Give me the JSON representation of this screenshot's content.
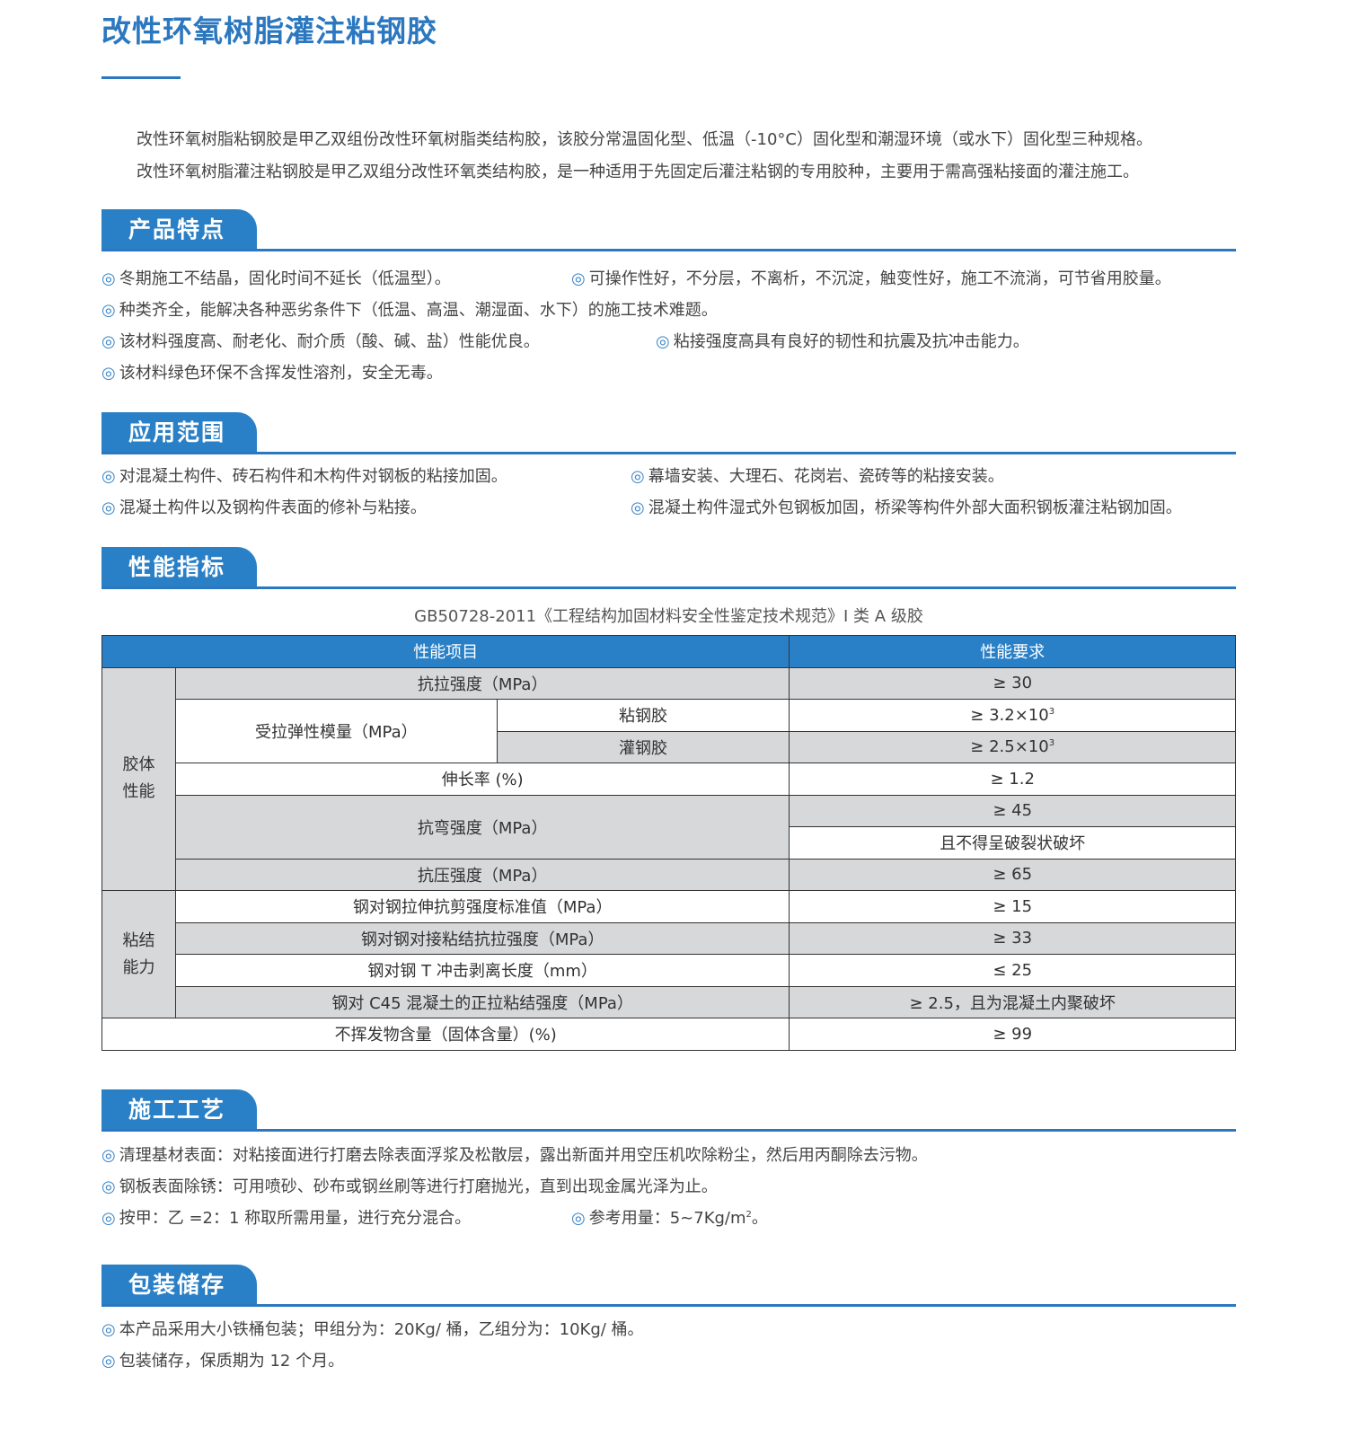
{
  "title": "改性环氧树脂灌注粘钢胶",
  "intro": [
    "改性环氧树脂粘钢胶是甲乙双组份改性环氧树脂类结构胶，该胶分常温固化型、低温（-10°C）固化型和潮湿环境（或水下）固化型三种规格。",
    "改性环氧树脂灌注粘钢胶是甲乙双组分改性环氧类结构胶，是一种适用于先固定后灌注粘钢的专用胶种，主要用于需高强粘接面的灌注施工。"
  ],
  "bullet": "◎",
  "colors": {
    "accent": "#2b78c0",
    "header_bg": "#2a80c6",
    "gray_cell": "#d7d8da"
  },
  "features": {
    "heading": "产品特点",
    "items": [
      "冬期施工不结晶，固化时间不延长（低温型）。",
      "可操作性好，不分层，不离析，不沉淀，触变性好，施工不流淌，可节省用胶量。",
      "种类齐全，能解决各种恶劣条件下（低温、高温、潮湿面、水下）的施工技术难题。",
      "该材料强度高、耐老化、耐介质（酸、碱、盐）性能优良。",
      "粘接强度高具有良好的韧性和抗震及抗冲击能力。",
      "该材料绿色环保不含挥发性溶剂，安全无毒。"
    ]
  },
  "applications": {
    "heading": "应用范围",
    "items": [
      "对混凝土构件、砖石构件和木构件对钢板的粘接加固。",
      "幕墙安装、大理石、花岗岩、瓷砖等的粘接安装。",
      "混凝土构件以及钢构件表面的修补与粘接。",
      "混凝土构件湿式外包钢板加固，桥梁等构件外部大面积钢板灌注粘钢加固。"
    ]
  },
  "performance": {
    "heading": "性能指标",
    "caption": "GB50728-2011《工程结构加固材料安全性鉴定技术规范》I 类 A 级胶",
    "col_item": "性能项目",
    "col_req": "性能要求",
    "group1": "胶体性能",
    "group2": "粘结能力",
    "rows": [
      {
        "item": "抗拉强度（MPa）",
        "req": "≥ 30"
      },
      {
        "item": "受拉弹性模量（MPa）",
        "sub": "粘钢胶",
        "req": "≥ 3.2×10",
        "sup": "3"
      },
      {
        "sub": "灌钢胶",
        "req": "≥ 2.5×10",
        "sup": "3"
      },
      {
        "item": "伸长率 (%)",
        "req": "≥ 1.2"
      },
      {
        "item": "抗弯强度（MPa）",
        "req": "≥ 45"
      },
      {
        "req": "且不得呈破裂状破坏"
      },
      {
        "item": "抗压强度（MPa）",
        "req": "≥ 65"
      },
      {
        "item": "钢对钢拉伸抗剪强度标准值（MPa）",
        "req": "≥ 15"
      },
      {
        "item": "钢对钢对接粘结抗拉强度（MPa）",
        "req": "≥ 33"
      },
      {
        "item": "钢对钢 T 冲击剥离长度（mm）",
        "req": "≤ 25"
      },
      {
        "item": "钢对 C45 混凝土的正拉粘结强度（MPa）",
        "req": "≥ 2.5，且为混凝土内聚破坏"
      },
      {
        "item": "不挥发物含量（固体含量）(%)",
        "req": "≥ 99"
      }
    ]
  },
  "process": {
    "heading": "施工工艺",
    "items": [
      "清理基材表面：对粘接面进行打磨去除表面浮浆及松散层，露出新面并用空压机吹除粉尘，然后用丙酮除去污物。",
      "钢板表面除锈：可用喷砂、砂布或钢丝刷等进行打磨抛光，直到出现金属光泽为止。",
      "按甲：乙 =2：1 称取所需用量，进行充分混合。",
      "参考用量：5~7Kg/m",
      "2",
      "。"
    ]
  },
  "packaging": {
    "heading": "包装储存",
    "items": [
      "本产品采用大小铁桶包装；甲组分为：20Kg/ 桶，乙组分为：10Kg/ 桶。",
      "包装储存，保质期为 12 个月。"
    ]
  }
}
